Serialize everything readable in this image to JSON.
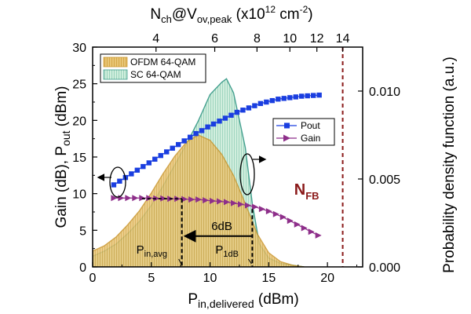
{
  "chart_data": {
    "type": "line",
    "bottom_axis": {
      "label_main": "P",
      "label_sub": "in,delivered",
      "label_tail": " (dBm)",
      "range": [
        0,
        23
      ],
      "ticks": [
        "0",
        "5",
        "10",
        "15",
        "20"
      ],
      "tick_values": [
        0,
        5,
        10,
        15,
        20
      ]
    },
    "left_axis": {
      "label_part1": "Gain (dB), P",
      "label_sub": "out",
      "label_tail": " (dBm)",
      "range": [
        0,
        30
      ],
      "ticks": [
        "0",
        "5",
        "10",
        "15",
        "20",
        "25",
        "30"
      ],
      "tick_values": [
        0,
        5,
        10,
        15,
        20,
        25,
        30
      ]
    },
    "right_axis": {
      "label": "Probability density function (a.u.)",
      "range": [
        0,
        0.0125
      ],
      "ticks": [
        "0.000",
        "0.005",
        "0.010"
      ],
      "tick_values": [
        0,
        0.005,
        0.01
      ]
    },
    "top_axis": {
      "label_p1": "N",
      "label_sub1": "ch",
      "label_p2": "@V",
      "label_sub2": "ov,peak",
      "label_p3": " (x10",
      "label_sup": "12",
      "label_p4": " cm",
      "label_sup2": "-2",
      "label_p5": ")",
      "ticks": [
        "4",
        "6",
        "8",
        "10",
        "12",
        "14"
      ],
      "tick_positions_dbm": [
        5.4,
        10.4,
        14.0,
        16.8,
        19.1,
        21.3
      ]
    },
    "series": [
      {
        "name": "OFDM 64-QAM",
        "kind": "pdf-area",
        "color": "#d9a43a",
        "fill": "#e8c676",
        "x": [
          0,
          1,
          2,
          3,
          4,
          5,
          6,
          7,
          8,
          9,
          10,
          11,
          12,
          13,
          14,
          15,
          16,
          17,
          18
        ],
        "y": [
          0.0009,
          0.0012,
          0.0017,
          0.0024,
          0.0032,
          0.0042,
          0.0053,
          0.0063,
          0.0071,
          0.0075,
          0.0072,
          0.0064,
          0.0052,
          0.0036,
          0.0019,
          0.0008,
          0.0003,
          0.0001,
          0.0
        ]
      },
      {
        "name": "SC 64-QAM",
        "kind": "pdf-area",
        "color": "#3b9b8a",
        "fill": "#bfe7d6",
        "x": [
          0,
          1,
          2,
          3,
          4,
          5,
          6,
          7,
          8,
          9,
          10,
          11,
          11.4,
          12,
          13,
          13.6,
          14.2,
          15,
          16,
          17,
          18
        ],
        "y": [
          0.0006,
          0.0009,
          0.0013,
          0.0019,
          0.0026,
          0.0035,
          0.0046,
          0.0058,
          0.007,
          0.0083,
          0.0098,
          0.0105,
          0.0107,
          0.0099,
          0.0068,
          0.0036,
          0.0013,
          0.0005,
          0.0002,
          0.0001,
          0.0
        ]
      },
      {
        "name": "Pout",
        "kind": "line-markers",
        "marker": "square",
        "color": "#1a3ee0",
        "x": [
          1.8,
          2.3,
          2.8,
          3.3,
          3.8,
          4.3,
          4.8,
          5.3,
          5.8,
          6.3,
          6.8,
          7.3,
          7.8,
          8.3,
          8.8,
          9.3,
          9.8,
          10.3,
          10.8,
          11.3,
          11.8,
          12.3,
          12.8,
          13.3,
          13.8,
          14.3,
          14.8,
          15.3,
          15.8,
          16.3,
          16.8,
          17.3,
          17.8,
          18.3,
          18.8,
          19.3
        ],
        "y": [
          11.2,
          11.7,
          12.2,
          12.7,
          13.2,
          13.7,
          14.2,
          14.7,
          15.2,
          15.7,
          16.2,
          16.7,
          17.2,
          17.7,
          18.2,
          18.6,
          19.1,
          19.5,
          19.9,
          20.3,
          20.7,
          21.1,
          21.4,
          21.7,
          22.0,
          22.3,
          22.5,
          22.7,
          22.9,
          23.0,
          23.1,
          23.2,
          23.3,
          23.35,
          23.4,
          23.45
        ]
      },
      {
        "name": "Gain",
        "kind": "line-markers",
        "marker": "triangle-right",
        "color": "#8e2f8a",
        "x": [
          1.8,
          2.4,
          3.0,
          3.6,
          4.2,
          4.8,
          5.4,
          6.0,
          6.6,
          7.2,
          7.8,
          8.4,
          9.0,
          9.6,
          10.2,
          10.8,
          11.4,
          12.0,
          12.6,
          13.2,
          13.8,
          14.4,
          15.0,
          15.6,
          16.2,
          16.8,
          17.4,
          18.0,
          18.6,
          19.2
        ],
        "y": [
          9.4,
          9.4,
          9.4,
          9.4,
          9.4,
          9.4,
          9.35,
          9.35,
          9.3,
          9.3,
          9.25,
          9.2,
          9.2,
          9.1,
          9.0,
          8.95,
          8.85,
          8.7,
          8.55,
          8.4,
          8.2,
          7.9,
          7.6,
          7.2,
          6.8,
          6.3,
          5.8,
          5.3,
          4.8,
          4.3
        ]
      }
    ],
    "legend_left": [
      "OFDM 64-QAM",
      "SC 64-QAM"
    ],
    "legend_right": [
      "Pout",
      "Gain"
    ],
    "annotations": {
      "p_in_avg_main": "P",
      "p_in_avg_sub": "in,avg",
      "p_1db_main": "P",
      "p_1db_sub": "1dB",
      "six_db": "6dB",
      "nfb_main": "N",
      "nfb_sub": "FB",
      "p_in_avg_x": 7.6,
      "p_1db_x": 13.6,
      "p_1db_level": 7.9,
      "p_in_avg_level": 9.3,
      "arrow_y": 4.2,
      "nfb_x": 21.3
    },
    "colors": {
      "ofdm": "#e8c676",
      "ofdm_edge": "#c9952b",
      "sc": "#bfe7d6",
      "sc_edge": "#3b9b8a",
      "pout": "#1a3ee0",
      "gain": "#8e2f8a",
      "nfb": "#8b1a1a"
    }
  }
}
